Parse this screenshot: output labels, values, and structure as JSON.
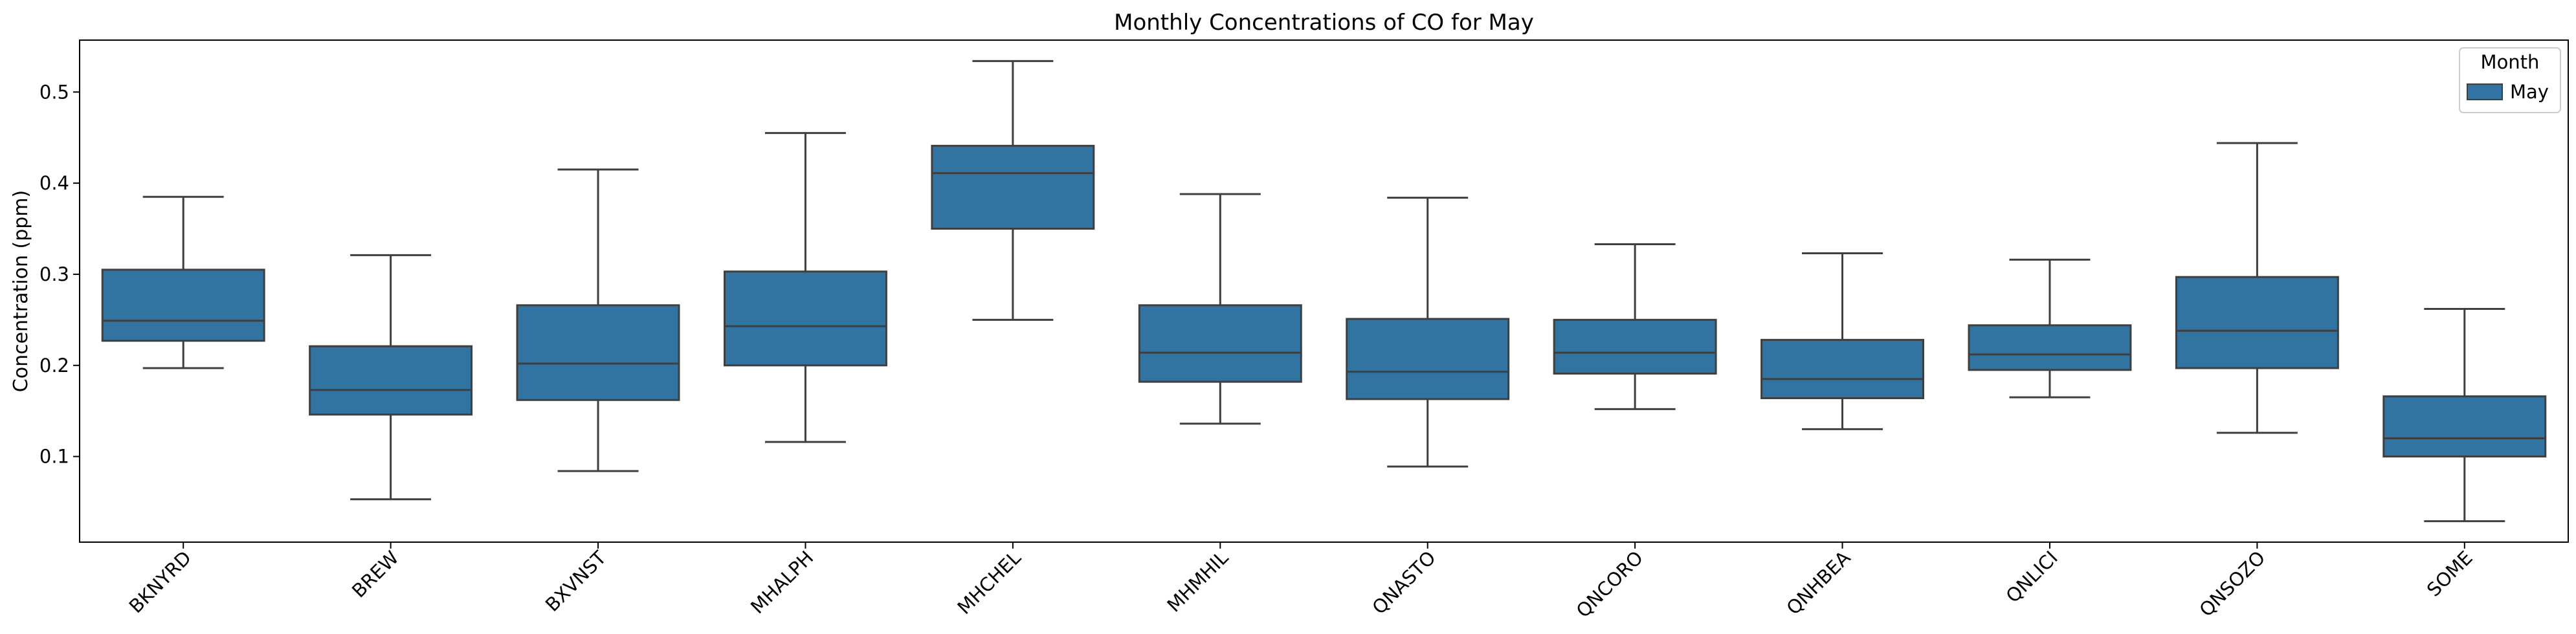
{
  "chart_data": {
    "type": "box",
    "title": "Monthly Concentrations of CO for May",
    "xlabel": "",
    "ylabel": "Concentration (ppm)",
    "ylim": [
      0.006,
      0.557
    ],
    "yticks": [
      0.1,
      0.2,
      0.3,
      0.4,
      0.5
    ],
    "ytick_labels": [
      "0.1",
      "0.2",
      "0.3",
      "0.4",
      "0.5"
    ],
    "categories": [
      "BKNYRD",
      "BREW",
      "BXVNST",
      "MHALPH",
      "MHCHEL",
      "MHMHIL",
      "QNASTO",
      "QNCORO",
      "QNHBEA",
      "QNLICI",
      "QNSOZO",
      "SOME"
    ],
    "legend": {
      "title": "Month",
      "entries": [
        "May"
      ],
      "location": "top-right"
    },
    "series": [
      {
        "name": "May",
        "color": "#3274a1",
        "boxes": [
          {
            "whislo": 0.197,
            "q1": 0.227,
            "med": 0.249,
            "q3": 0.305,
            "whishi": 0.385
          },
          {
            "whislo": 0.053,
            "q1": 0.146,
            "med": 0.173,
            "q3": 0.221,
            "whishi": 0.321
          },
          {
            "whislo": 0.084,
            "q1": 0.162,
            "med": 0.202,
            "q3": 0.266,
            "whishi": 0.415
          },
          {
            "whislo": 0.116,
            "q1": 0.2,
            "med": 0.243,
            "q3": 0.303,
            "whishi": 0.455
          },
          {
            "whislo": 0.25,
            "q1": 0.35,
            "med": 0.411,
            "q3": 0.441,
            "whishi": 0.534
          },
          {
            "whislo": 0.136,
            "q1": 0.182,
            "med": 0.214,
            "q3": 0.266,
            "whishi": 0.388
          },
          {
            "whislo": 0.089,
            "q1": 0.163,
            "med": 0.193,
            "q3": 0.251,
            "whishi": 0.384
          },
          {
            "whislo": 0.152,
            "q1": 0.191,
            "med": 0.214,
            "q3": 0.25,
            "whishi": 0.333
          },
          {
            "whislo": 0.13,
            "q1": 0.164,
            "med": 0.185,
            "q3": 0.228,
            "whishi": 0.323
          },
          {
            "whislo": 0.165,
            "q1": 0.195,
            "med": 0.212,
            "q3": 0.244,
            "whishi": 0.316
          },
          {
            "whislo": 0.126,
            "q1": 0.197,
            "med": 0.238,
            "q3": 0.297,
            "whishi": 0.444
          },
          {
            "whislo": 0.029,
            "q1": 0.1,
            "med": 0.12,
            "q3": 0.166,
            "whishi": 0.262
          }
        ]
      }
    ],
    "grid": false
  }
}
